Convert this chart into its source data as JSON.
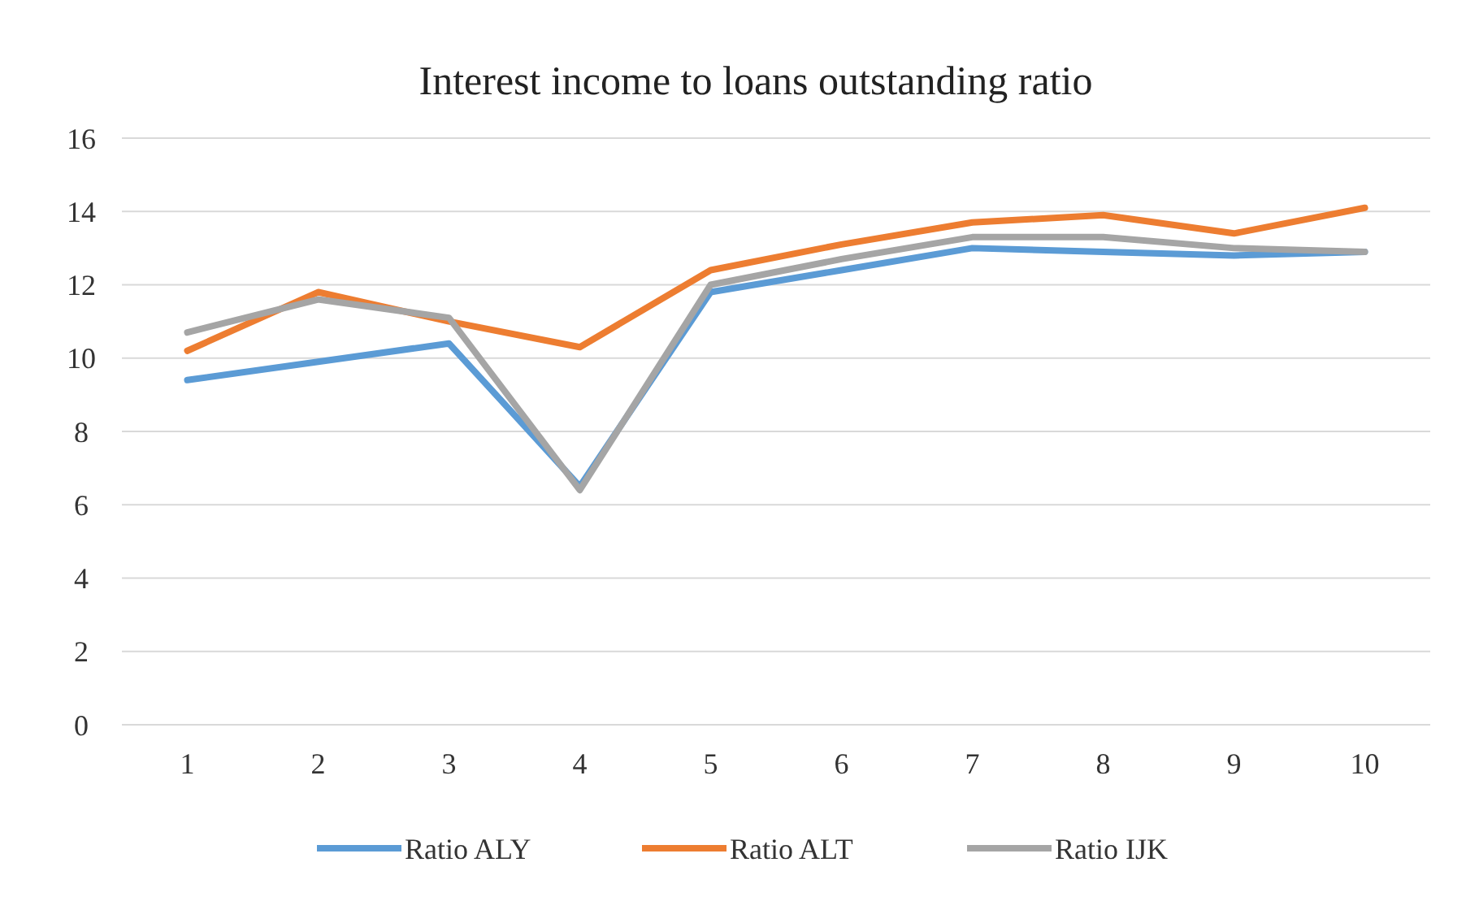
{
  "chart_data": {
    "type": "line",
    "title": "Interest income to loans outstanding ratio",
    "categories": [
      "1",
      "2",
      "3",
      "4",
      "5",
      "6",
      "7",
      "8",
      "9",
      "10"
    ],
    "series": [
      {
        "name": "Ratio ALY",
        "color": "#5b9bd5",
        "values": [
          9.4,
          9.9,
          10.4,
          6.5,
          11.8,
          12.4,
          13.0,
          12.9,
          12.8,
          12.9
        ]
      },
      {
        "name": "Ratio ALT",
        "color": "#ed7d31",
        "values": [
          10.2,
          11.8,
          11.0,
          10.3,
          12.4,
          13.1,
          13.7,
          13.9,
          13.4,
          14.1
        ]
      },
      {
        "name": "Ratio IJK",
        "color": "#a5a5a5",
        "values": [
          10.7,
          11.6,
          11.1,
          6.4,
          12.0,
          12.7,
          13.3,
          13.3,
          13.0,
          12.9
        ]
      }
    ],
    "ylim": [
      0,
      16
    ],
    "yticks": [
      0,
      2,
      4,
      6,
      8,
      10,
      12,
      14,
      16
    ],
    "grid": "y",
    "legend": "bottom",
    "marker": "none",
    "line_style": "solid"
  }
}
